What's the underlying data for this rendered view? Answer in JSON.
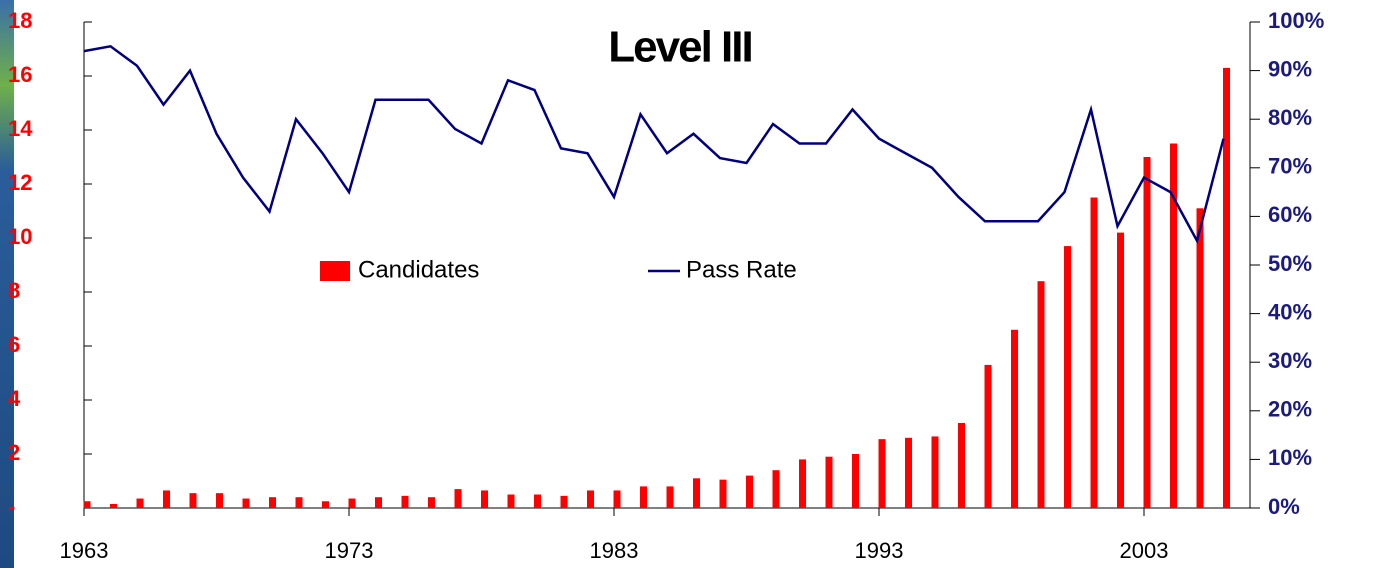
{
  "chart_data": {
    "type": "bar-line",
    "title": "Level III",
    "x": [
      1963,
      1964,
      1965,
      1966,
      1967,
      1968,
      1969,
      1970,
      1971,
      1972,
      1973,
      1974,
      1975,
      1976,
      1977,
      1978,
      1979,
      1980,
      1981,
      1982,
      1983,
      1984,
      1985,
      1986,
      1987,
      1988,
      1989,
      1990,
      1991,
      1992,
      1993,
      1994,
      1995,
      1996,
      1997,
      1998,
      1999,
      2000,
      2001,
      2002,
      2003,
      2004,
      2005,
      2006
    ],
    "series": [
      {
        "name": "Candidates",
        "type": "bar",
        "color": "#ff0000",
        "axis": "y",
        "values": [
          0.25,
          0.15,
          0.35,
          0.65,
          0.55,
          0.55,
          0.35,
          0.4,
          0.4,
          0.25,
          0.35,
          0.4,
          0.45,
          0.4,
          0.7,
          0.65,
          0.5,
          0.5,
          0.45,
          0.65,
          0.65,
          0.8,
          0.8,
          1.1,
          1.05,
          1.2,
          1.4,
          1.8,
          1.9,
          2.0,
          2.55,
          2.6,
          2.65,
          3.15,
          5.3,
          6.6,
          8.4,
          9.7,
          11.5,
          10.2,
          13.0,
          13.5,
          11.1,
          16.3
        ]
      },
      {
        "name": "Pass Rate",
        "type": "line",
        "color": "#000080",
        "axis": "y2",
        "values": [
          94,
          95,
          91,
          83,
          90,
          77,
          68,
          61,
          80,
          73,
          65,
          84,
          84,
          84,
          78,
          75,
          88,
          86,
          74,
          73,
          64,
          81,
          73,
          77,
          72,
          71,
          79,
          75,
          75,
          82,
          76,
          73,
          70,
          64,
          59,
          59,
          59,
          65,
          82,
          58,
          68,
          65,
          55,
          76
        ]
      }
    ],
    "xlim": [
      1963,
      2007
    ],
    "xticks": [
      1963,
      1973,
      1983,
      1993,
      2003
    ],
    "ylim": [
      0,
      18
    ],
    "yticks": [
      {
        "value": 0,
        "label": "-"
      },
      2,
      4,
      6,
      8,
      10,
      12,
      14,
      16,
      18
    ],
    "y2lim": [
      0,
      100
    ],
    "y2ticks": [
      {
        "value": 0,
        "label": "0%"
      },
      {
        "value": 10,
        "label": "10%"
      },
      {
        "value": 20,
        "label": "20%"
      },
      {
        "value": 30,
        "label": "30%"
      },
      {
        "value": 40,
        "label": "40%"
      },
      {
        "value": 50,
        "label": "50%"
      },
      {
        "value": 60,
        "label": "60%"
      },
      {
        "value": 70,
        "label": "70%"
      },
      {
        "value": 80,
        "label": "80%"
      },
      {
        "value": 90,
        "label": "90%"
      },
      {
        "value": 100,
        "label": "100%"
      }
    ],
    "legend": "center",
    "grid": false
  }
}
